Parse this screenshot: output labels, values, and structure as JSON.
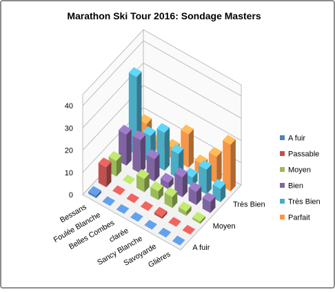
{
  "chart_data": {
    "type": "bar3d",
    "title": "Marathon Ski Tour 2016: Sondage Masters",
    "categories": [
      "Bessans",
      "Foulée Blanche",
      "Belles Combes",
      "clarée",
      "Sancy Blanche",
      "Savoyarde",
      "Glières"
    ],
    "series": [
      {
        "name": "A fuir",
        "color": "#4f81bd",
        "values": [
          1,
          0,
          0,
          0,
          0,
          0,
          0
        ]
      },
      {
        "name": "Passable",
        "color": "#c0504d",
        "values": [
          9,
          0,
          0,
          0,
          1,
          0,
          0
        ]
      },
      {
        "name": "Moyen",
        "color": "#9bbb59",
        "values": [
          7,
          0,
          6,
          4,
          5,
          2,
          1
        ]
      },
      {
        "name": "Bien",
        "color": "#8064a2",
        "values": [
          14,
          15,
          10,
          3,
          9,
          6,
          5
        ]
      },
      {
        "name": "Très Bien",
        "color": "#4bacc6",
        "values": [
          35,
          12,
          17,
          11,
          4,
          11,
          6
        ]
      },
      {
        "name": "Parfait",
        "color": "#f79646",
        "values": [
          9,
          4,
          5,
          15,
          5,
          12,
          21
        ]
      }
    ],
    "ylim": [
      0,
      45
    ],
    "yticks": [
      0,
      10,
      20,
      30,
      40
    ],
    "grid": true
  }
}
